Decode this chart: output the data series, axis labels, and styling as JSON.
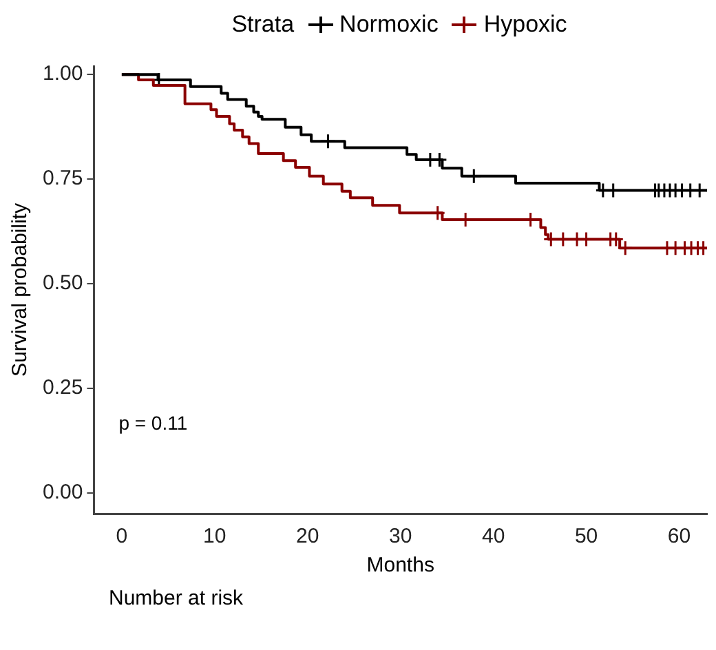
{
  "chart_data": {
    "type": "step",
    "xlabel": "Months",
    "ylabel": "Survival probability",
    "legend_title": "Strata",
    "legend": "top",
    "grid": false,
    "line_style": "solid",
    "xlim": [
      -3,
      63
    ],
    "xticks": [
      0,
      10,
      20,
      30,
      40,
      50,
      60
    ],
    "ylim": [
      -0.05,
      1.02
    ],
    "yticks": [
      {
        "value": 0,
        "label": "0.00"
      },
      {
        "value": 0.25,
        "label": "0.25"
      },
      {
        "value": 0.5,
        "label": "0.50"
      },
      {
        "value": 0.75,
        "label": "0.75"
      },
      {
        "value": 1,
        "label": "1.00"
      }
    ],
    "annotations": [
      "p = 0.11",
      "Number at risk"
    ],
    "series": [
      {
        "name": "Normoxic",
        "color": "#000000",
        "marker": "none",
        "x": [
          0,
          3.9,
          7.4,
          10.7,
          11.4,
          13.4,
          14.2,
          14.7,
          15.1,
          17.6,
          19.3,
          20.4,
          24.0,
          30.7,
          31.7,
          34.5,
          36.6,
          42.4,
          51.4,
          63
        ],
        "values": [
          1,
          0.987,
          0.971,
          0.955,
          0.94,
          0.924,
          0.91,
          0.9,
          0.893,
          0.874,
          0.856,
          0.84,
          0.825,
          0.809,
          0.796,
          0.776,
          0.757,
          0.74,
          0.723,
          0.723
        ]
      },
      {
        "name": "Hypoxic",
        "color": "#8b0000",
        "marker": "none",
        "x": [
          0,
          1.8,
          3.4,
          6.8,
          9.6,
          10.2,
          11.6,
          12.1,
          13.0,
          13.7,
          14.7,
          17.4,
          18.7,
          20.2,
          21.7,
          23.7,
          24.6,
          27.0,
          29.9,
          34.5,
          45.1,
          45.6,
          45.9,
          53.6,
          63
        ],
        "values": [
          1,
          0.987,
          0.974,
          0.93,
          0.916,
          0.9,
          0.882,
          0.867,
          0.851,
          0.835,
          0.811,
          0.794,
          0.778,
          0.757,
          0.738,
          0.721,
          0.705,
          0.687,
          0.669,
          0.653,
          0.634,
          0.617,
          0.606,
          0.585,
          0.585
        ]
      },
      {
        "type": "scatter",
        "color": "#000000",
        "marker": "cross",
        "x": [
          4.0,
          22.2,
          33.2,
          34.2,
          37.9,
          51.8,
          52.9,
          57.4,
          57.8,
          58.4,
          59.0,
          59.6,
          60.3,
          61.2,
          62.2
        ],
        "values": [
          0.987,
          0.84,
          0.796,
          0.796,
          0.757,
          0.723,
          0.723,
          0.723,
          0.723,
          0.723,
          0.723,
          0.723,
          0.723,
          0.723,
          0.723
        ]
      },
      {
        "type": "scatter",
        "color": "#8b0000",
        "marker": "cross",
        "x": [
          34.0,
          37.0,
          44.0,
          46.2,
          47.5,
          49.0,
          50.0,
          52.6,
          53.2,
          54.2,
          58.7,
          59.6,
          60.6,
          61.3,
          62.0,
          62.6
        ],
        "values": [
          0.669,
          0.653,
          0.653,
          0.606,
          0.606,
          0.606,
          0.606,
          0.606,
          0.606,
          0.585,
          0.585,
          0.585,
          0.585,
          0.585,
          0.585,
          0.585
        ]
      }
    ]
  }
}
